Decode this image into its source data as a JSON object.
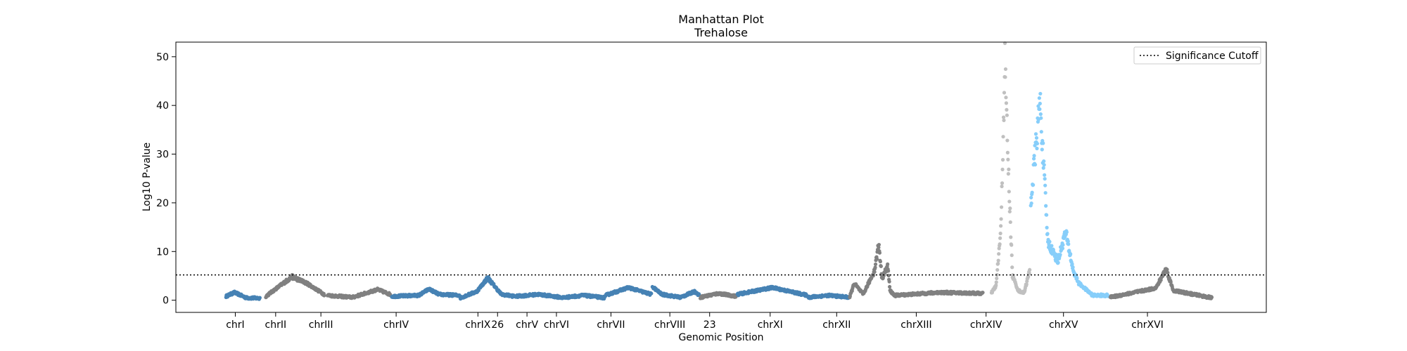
{
  "chart_data": {
    "type": "scatter",
    "title": "Manhattan Plot",
    "subtitle": "Trehalose",
    "xlabel": "Genomic Position",
    "ylabel": "Log10 P-value",
    "ylim": [
      -2.5,
      53
    ],
    "yticks": [
      0,
      10,
      20,
      30,
      40,
      50
    ],
    "grid": false,
    "legend": {
      "placement": "top-right",
      "entries": [
        "Significance Cutoff"
      ]
    },
    "cutoff": 5.2,
    "colors": {
      "steelblue": "#4682b4",
      "gray": "#808080",
      "silver": "#c0c0c0",
      "lightskyblue": "#87cefa",
      "cutoff": "#000000"
    },
    "chromosomes": [
      {
        "label": "chrI",
        "color": "steelblue",
        "profile": [
          [
            0,
            0.8
          ],
          [
            0.25,
            1.6
          ],
          [
            0.6,
            0.5
          ],
          [
            1,
            0.4
          ]
        ]
      },
      {
        "label": "chrII",
        "color": "gray",
        "profile": [
          [
            0,
            0.8
          ],
          [
            0.3,
            3.5
          ],
          [
            0.45,
            4.8
          ],
          [
            0.7,
            3.5
          ],
          [
            1,
            1.2
          ]
        ]
      },
      {
        "label": "chrIII",
        "color": "gray",
        "profile": [
          [
            0,
            1.0
          ],
          [
            0.4,
            0.6
          ],
          [
            0.8,
            2.2
          ],
          [
            1,
            1.2
          ]
        ]
      },
      {
        "label": "chrIV",
        "color": "steelblue",
        "profile": [
          [
            0,
            0.8
          ],
          [
            0.4,
            1.0
          ],
          [
            0.55,
            2.3
          ],
          [
            0.7,
            1.2
          ],
          [
            1,
            1.0
          ]
        ]
      },
      {
        "label": "chrIX",
        "color": "steelblue",
        "profile": [
          [
            0,
            0.5
          ],
          [
            0.3,
            1.8
          ],
          [
            0.5,
            4.6
          ],
          [
            0.75,
            1.2
          ],
          [
            1,
            0.8
          ]
        ]
      },
      {
        "label": "26",
        "color": "steelblue",
        "profile": [
          [
            0,
            0.8
          ],
          [
            0.5,
            1.2
          ],
          [
            1,
            0.6
          ]
        ]
      },
      {
        "label": "chrV",
        "color": "steelblue",
        "profile": [
          [
            0,
            0.5
          ],
          [
            0.5,
            1.0
          ],
          [
            1,
            0.5
          ]
        ]
      },
      {
        "label": "chrVI",
        "color": "steelblue",
        "profile": [
          [
            0,
            1.0
          ],
          [
            0.5,
            2.6
          ],
          [
            1,
            1.2
          ]
        ]
      },
      {
        "label": "chrVII",
        "color": "steelblue",
        "profile": [
          [
            0,
            2.8
          ],
          [
            0.2,
            1.2
          ],
          [
            0.6,
            0.6
          ],
          [
            0.9,
            1.8
          ],
          [
            1,
            1.0
          ]
        ]
      },
      {
        "label": "chrVIII",
        "color": "gray",
        "profile": [
          [
            0,
            0.6
          ],
          [
            0.5,
            1.4
          ],
          [
            1,
            0.8
          ]
        ]
      },
      {
        "label": "23",
        "color": "steelblue",
        "profile": [
          [
            0,
            1.2
          ],
          [
            0.5,
            2.6
          ],
          [
            1,
            1.0
          ]
        ]
      },
      {
        "label": "chrXI",
        "color": "steelblue",
        "profile": [
          [
            0,
            0.6
          ],
          [
            0.5,
            1.0
          ],
          [
            1,
            0.6
          ]
        ]
      },
      {
        "label": "chrXII",
        "color": "gray",
        "profile": [
          [
            0,
            0.6
          ],
          [
            0.1,
            3.5
          ],
          [
            0.3,
            1.2
          ],
          [
            0.55,
            6.0
          ],
          [
            0.65,
            11.5
          ],
          [
            0.72,
            4.5
          ],
          [
            0.85,
            7.0
          ],
          [
            0.9,
            2.0
          ],
          [
            1,
            1.0
          ]
        ]
      },
      {
        "label": "chrXIII",
        "color": "gray",
        "profile": [
          [
            0,
            1.0
          ],
          [
            0.5,
            1.6
          ],
          [
            1,
            1.4
          ]
        ]
      },
      {
        "label": "chrXIV",
        "color": "silver",
        "profile": [
          [
            0,
            1.5
          ],
          [
            0.12,
            3.0
          ],
          [
            0.25,
            15.0
          ],
          [
            0.35,
            49.0
          ],
          [
            0.45,
            25.0
          ],
          [
            0.55,
            5.0
          ],
          [
            0.7,
            2.0
          ],
          [
            0.85,
            1.5
          ],
          [
            0.95,
            4.5
          ],
          [
            1,
            6.0
          ]
        ]
      },
      {
        "label": "chrXV",
        "color": "lightskyblue",
        "profile": [
          [
            0,
            20.0
          ],
          [
            0.12,
            41.0
          ],
          [
            0.22,
            12.0
          ],
          [
            0.35,
            8.0
          ],
          [
            0.45,
            14.0
          ],
          [
            0.55,
            6.0
          ],
          [
            0.62,
            3.5
          ],
          [
            0.8,
            1.0
          ],
          [
            1,
            1.0
          ]
        ]
      },
      {
        "label": "chrXVI",
        "color": "gray",
        "profile": [
          [
            0,
            0.6
          ],
          [
            0.45,
            2.5
          ],
          [
            0.55,
            6.5
          ],
          [
            0.62,
            2.0
          ],
          [
            1,
            0.5
          ]
        ]
      }
    ]
  }
}
